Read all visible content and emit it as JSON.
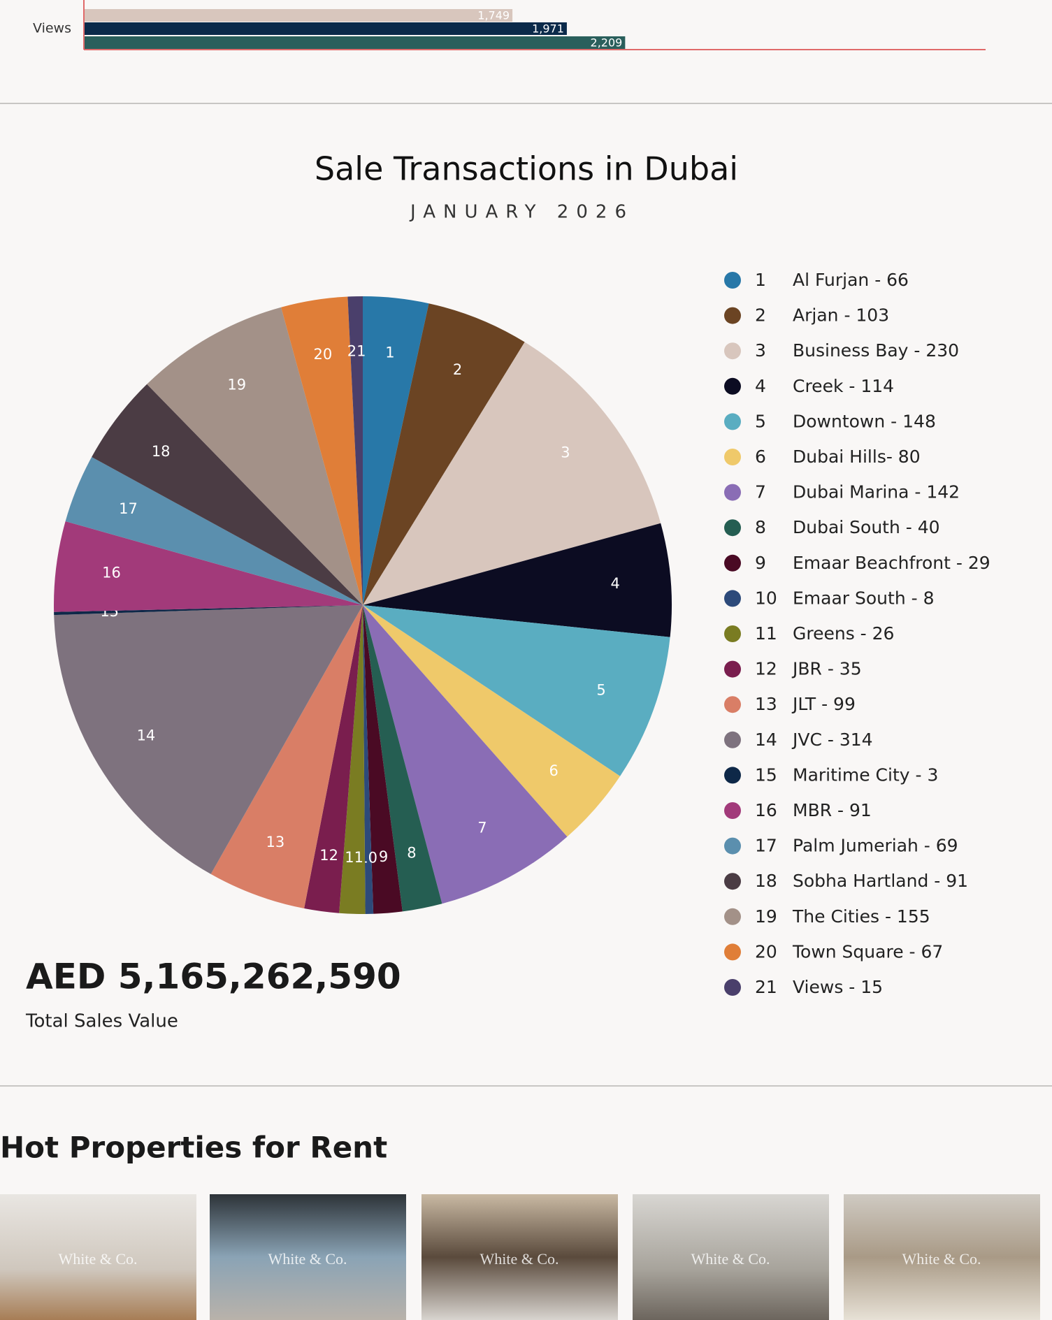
{
  "chart_data": [
    {
      "type": "hbar",
      "categories": [
        "Views"
      ],
      "series": [
        {
          "color": "#d8c6bd",
          "values": [
            1749
          ],
          "value_labels": [
            "1,749"
          ]
        },
        {
          "color": "#0b2a4a",
          "values": [
            1971
          ],
          "value_labels": [
            "1,971"
          ]
        },
        {
          "color": "#2a5f5c",
          "values": [
            2209
          ],
          "value_labels": [
            "2,209"
          ]
        }
      ],
      "xlim": [
        0,
        3680
      ]
    },
    {
      "type": "pie",
      "title": "Sale Transactions in Dubai",
      "subtitle": "JANUARY 2026",
      "slice_labels": [
        "1",
        "2",
        "3",
        "4",
        "5",
        "6",
        "7",
        "8",
        "9",
        "10",
        "11",
        "12",
        "13",
        "14",
        "15",
        "16",
        "17",
        "18",
        "19",
        "20",
        "21"
      ],
      "categories": [
        "Al Furjan - 66",
        "Arjan - 103",
        "Business Bay - 230",
        "Creek - 114",
        "Downtown - 148",
        "Dubai Hills- 80",
        "Dubai Marina - 142",
        "Dubai South - 40",
        "Emaar Beachfront - 29",
        "Emaar South - 8",
        "Greens - 26",
        "JBR - 35",
        "JLT - 99",
        "JVC - 314",
        "Maritime City - 3",
        "MBR - 91",
        "Palm Jumeriah - 69",
        "Sobha Hartland - 91",
        "The Cities - 155",
        "Town Square - 67",
        "Views - 15"
      ],
      "values": [
        66,
        103,
        230,
        114,
        148,
        80,
        142,
        40,
        29,
        8,
        26,
        35,
        99,
        314,
        3,
        91,
        69,
        91,
        155,
        67,
        15
      ],
      "colors": [
        "#2878a8",
        "#6b4423",
        "#d8c6bd",
        "#0c0c22",
        "#5aadc1",
        "#efc96a",
        "#8a6db5",
        "#255e52",
        "#4a0a24",
        "#2d4a7a",
        "#7a7c22",
        "#7a1e4e",
        "#d97e66",
        "#7e727e",
        "#0e2848",
        "#a23a7a",
        "#5b8fae",
        "#4b3c44",
        "#a39188",
        "#e07e38",
        "#4a3f6b"
      ],
      "legend": "right"
    }
  ],
  "total_value": "AED 5,165,262,590",
  "total_label": "Total Sales Value",
  "section_title": "Hot Properties for Rent",
  "cards": [
    {
      "watermark": "White & Co."
    },
    {
      "watermark": "White & Co."
    },
    {
      "watermark": "White & Co."
    },
    {
      "watermark": "White & Co."
    },
    {
      "watermark": "White & Co."
    }
  ]
}
